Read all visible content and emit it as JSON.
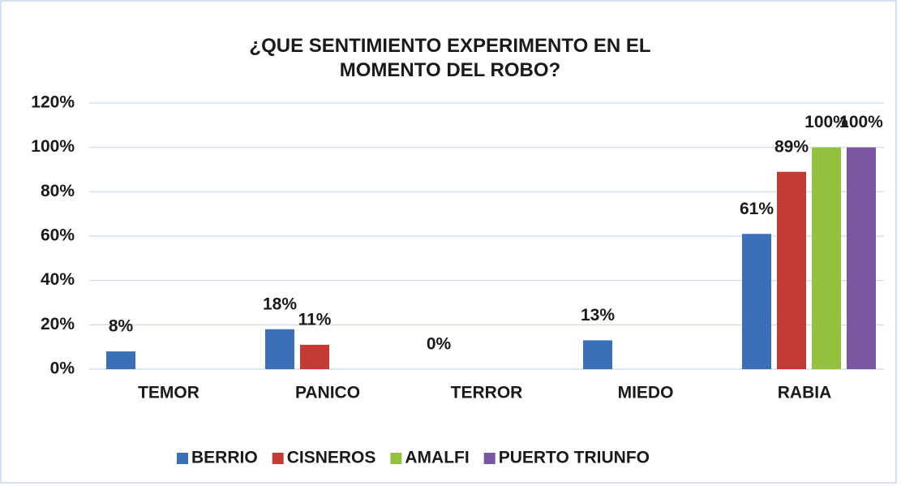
{
  "chart_data": {
    "type": "bar",
    "title": "¿QUE SENTIMIENTO EXPERIMENTO EN EL MOMENTO DEL ROBO?",
    "categories": [
      "TEMOR",
      "PANICO",
      "TERROR",
      "MIEDO",
      "RABIA"
    ],
    "series": [
      {
        "name": "BERRIO",
        "color": "#3b70b9",
        "values": [
          8,
          18,
          0,
          13,
          61
        ],
        "value_labels": [
          "8%",
          "18%",
          "0%",
          "13%",
          "61%"
        ]
      },
      {
        "name": "CISNEROS",
        "color": "#c43a35",
        "values": [
          null,
          11,
          null,
          null,
          89
        ],
        "value_labels": [
          null,
          "11%",
          null,
          null,
          "89%"
        ]
      },
      {
        "name": "AMALFI",
        "color": "#92c23e",
        "values": [
          null,
          null,
          null,
          null,
          100
        ],
        "value_labels": [
          null,
          null,
          null,
          null,
          "100%"
        ]
      },
      {
        "name": "PUERTO TRIUNFO",
        "color": "#7a56a1",
        "values": [
          null,
          null,
          null,
          null,
          100
        ],
        "value_labels": [
          null,
          null,
          null,
          null,
          "100%"
        ]
      }
    ],
    "ylim": [
      0,
      120
    ],
    "yticks": [
      {
        "value": 0,
        "label": "0%"
      },
      {
        "value": 20,
        "label": "20%"
      },
      {
        "value": 40,
        "label": "40%"
      },
      {
        "value": 60,
        "label": "60%"
      },
      {
        "value": 80,
        "label": "80%"
      },
      {
        "value": 100,
        "label": "100%"
      },
      {
        "value": 120,
        "label": "120%"
      }
    ],
    "grid": true,
    "legend": "bottom"
  }
}
